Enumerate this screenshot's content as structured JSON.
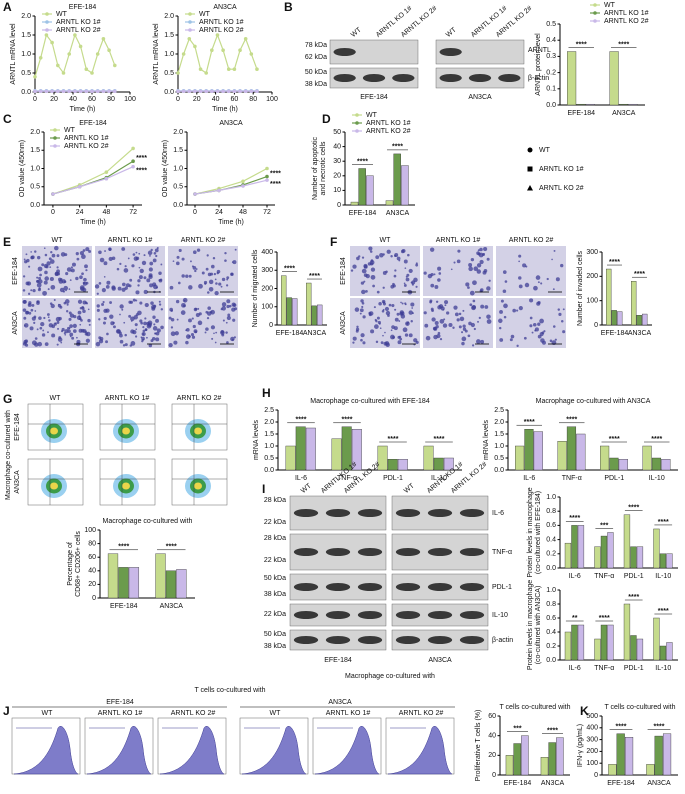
{
  "chart_data": [
    {
      "type": "line",
      "title": "EFE-184",
      "x_label": "Time (h)",
      "y_label": "ARNTL mRNA level",
      "x": [
        0,
        6,
        12,
        18,
        24,
        30,
        36,
        42,
        48,
        54,
        60,
        66,
        72,
        78,
        84
      ],
      "xlim": [
        0,
        100
      ],
      "xticks": [
        0,
        20,
        40,
        60,
        80,
        100
      ],
      "ylim": [
        0,
        2
      ],
      "yticks": [
        {
          "value": 0,
          "label": "0.0"
        },
        0.5,
        {
          "value": 1,
          "label": "1.0"
        },
        1.5,
        {
          "value": 2,
          "label": "2.0"
        }
      ],
      "series": [
        {
          "name": "WT",
          "color": "#c5db8c",
          "values": [
            0.4,
            0.9,
            1.5,
            1.3,
            0.7,
            0.5,
            1.0,
            1.5,
            1.2,
            0.6,
            0.5,
            1.0,
            1.4,
            1.1,
            0.7
          ]
        },
        {
          "name": "ARNTL KO 1#",
          "color": "#9ec3e6",
          "values": [
            0.03,
            0.03,
            0.03,
            0.03,
            0.03,
            0.03,
            0.03,
            0.03,
            0.03,
            0.03,
            0.03,
            0.03,
            0.03,
            0.03,
            0.03
          ]
        },
        {
          "name": "ARNTL KO 2#",
          "color": "#c9b8e8",
          "values": [
            0.02,
            0.02,
            0.02,
            0.02,
            0.02,
            0.02,
            0.02,
            0.02,
            0.02,
            0.02,
            0.02,
            0.02,
            0.02,
            0.02,
            0.02
          ]
        }
      ]
    },
    {
      "type": "line",
      "title": "AN3CA",
      "x_label": "Time (h)",
      "y_label": "ARNTL mRNA level",
      "x": [
        0,
        6,
        12,
        18,
        24,
        30,
        36,
        42,
        48,
        54,
        60,
        66,
        72,
        78,
        84
      ],
      "xlim": [
        0,
        100
      ],
      "xticks": [
        0,
        20,
        40,
        60,
        80,
        100
      ],
      "ylim": [
        0,
        2
      ],
      "yticks": [
        {
          "value": 0,
          "label": "0.0"
        },
        0.5,
        {
          "value": 1,
          "label": "1.0"
        },
        1.5,
        {
          "value": 2,
          "label": "2.0"
        }
      ],
      "series": [
        {
          "name": "WT",
          "color": "#c5db8c",
          "values": [
            0.5,
            1.0,
            1.4,
            1.2,
            0.6,
            0.5,
            1.1,
            1.5,
            1.1,
            0.6,
            0.6,
            1.1,
            1.4,
            1.0,
            0.6
          ]
        },
        {
          "name": "ARNTL KO 1#",
          "color": "#9ec3e6",
          "values": [
            0.03,
            0.03,
            0.03,
            0.03,
            0.03,
            0.03,
            0.03,
            0.03,
            0.03,
            0.03,
            0.03,
            0.03,
            0.03,
            0.03,
            0.03
          ]
        },
        {
          "name": "ARNTL KO 2#",
          "color": "#c9b8e8",
          "values": [
            0.02,
            0.02,
            0.02,
            0.02,
            0.02,
            0.02,
            0.02,
            0.02,
            0.02,
            0.02,
            0.02,
            0.02,
            0.02,
            0.02,
            0.02
          ]
        }
      ]
    },
    {
      "type": "bar",
      "y_label": [
        "ARNTL protein level"
      ],
      "categories": [
        "EFE-184",
        "AN3CA"
      ],
      "ylim": [
        0,
        0.5
      ],
      "yticks": [
        {
          "value": 0,
          "label": "0.0"
        },
        0.1,
        0.2,
        0.3,
        0.4,
        0.5
      ],
      "annotations": [
        "****",
        "****"
      ],
      "series": [
        {
          "name": "WT",
          "color": "#c5db8c",
          "values": [
            0.33,
            0.33
          ]
        },
        {
          "name": "ARNTL KO 1#",
          "color": "#6b9b4c",
          "values": [
            0.005,
            0.005
          ]
        },
        {
          "name": "ARNTL KO 2#",
          "color": "#c9b8e8",
          "values": [
            0.005,
            0.005
          ]
        }
      ]
    },
    {
      "type": "line",
      "title": "EFE-184",
      "x_label": "Time (h)",
      "y_label": [
        "OD value (450nm)"
      ],
      "x": [
        0,
        24,
        48,
        72
      ],
      "xlim": [
        -8,
        80
      ],
      "xticks": [
        0,
        24,
        48,
        72
      ],
      "ylim": [
        0,
        2
      ],
      "yticks": [
        {
          "value": 0,
          "label": "0.0"
        },
        0.5,
        {
          "value": 1,
          "label": "1.0"
        },
        1.5,
        {
          "value": 2,
          "label": "2.0"
        }
      ],
      "annotations": [
        "****",
        "****"
      ],
      "series": [
        {
          "name": "WT",
          "color": "#c5db8c",
          "values": [
            0.3,
            0.55,
            0.9,
            1.55
          ]
        },
        {
          "name": "ARNTL KO 1#",
          "color": "#6b9b4c",
          "values": [
            0.3,
            0.5,
            0.75,
            1.2
          ]
        },
        {
          "name": "ARNTL KO 2#",
          "color": "#c9b8e8",
          "values": [
            0.3,
            0.5,
            0.72,
            1.05
          ]
        }
      ]
    },
    {
      "type": "line",
      "title": "AN3CA",
      "x_label": "Time (h)",
      "y_label": [
        "OD value (450nm)"
      ],
      "x": [
        0,
        24,
        48,
        72
      ],
      "xlim": [
        -8,
        80
      ],
      "xticks": [
        0,
        24,
        48,
        72
      ],
      "ylim": [
        0,
        2
      ],
      "yticks": [
        {
          "value": 0,
          "label": "0.0"
        },
        0.5,
        {
          "value": 1,
          "label": "1.0"
        },
        1.5,
        {
          "value": 2,
          "label": "2.0"
        }
      ],
      "annotations": [
        "****",
        "****"
      ],
      "series": [
        {
          "color": "#c5db8c",
          "values": [
            0.3,
            0.45,
            0.65,
            1.0
          ]
        },
        {
          "color": "#6b9b4c",
          "values": [
            0.3,
            0.4,
            0.55,
            0.78
          ]
        },
        {
          "color": "#c9b8e8",
          "values": [
            0.3,
            0.4,
            0.52,
            0.68
          ]
        }
      ]
    },
    {
      "type": "bar",
      "y_label": [
        "Number of apoptotic",
        "and necrotic cells"
      ],
      "categories": [
        "EFE-184",
        "AN3CA"
      ],
      "ylim": [
        0,
        50
      ],
      "yticks": [
        0,
        10,
        20,
        30,
        40,
        50
      ],
      "annotations": [
        "****",
        "****"
      ],
      "series": [
        {
          "name": "WT",
          "color": "#c5db8c",
          "values": [
            2,
            3
          ]
        },
        {
          "name": "ARNTL KO 1#",
          "color": "#6b9b4c",
          "values": [
            25,
            35
          ]
        },
        {
          "name": "ARNTL KO 2#",
          "color": "#c9b8e8",
          "values": [
            20,
            27
          ]
        }
      ]
    },
    {
      "type": "bar",
      "y_label": [
        "Number of migrated cells"
      ],
      "categories": [
        "EFE-184",
        "AN3CA"
      ],
      "ylim": [
        0,
        400
      ],
      "yticks": [
        0,
        100,
        200,
        300,
        400
      ],
      "annotations": [
        "****",
        "****"
      ],
      "series": [
        {
          "color": "#c5db8c",
          "values": [
            270,
            230
          ]
        },
        {
          "color": "#6b9b4c",
          "values": [
            150,
            105
          ]
        },
        {
          "color": "#c9b8e8",
          "values": [
            145,
            110
          ]
        }
      ]
    },
    {
      "type": "bar",
      "y_label": [
        "Number of invaded cells"
      ],
      "categories": [
        "EFE-184",
        "AN3CA"
      ],
      "ylim": [
        0,
        300
      ],
      "yticks": [
        0,
        100,
        200,
        300
      ],
      "annotations": [
        "****",
        "****"
      ],
      "series": [
        {
          "color": "#c5db8c",
          "values": [
            230,
            180
          ]
        },
        {
          "color": "#6b9b4c",
          "values": [
            60,
            40
          ]
        },
        {
          "color": "#c9b8e8",
          "values": [
            55,
            45
          ]
        }
      ]
    },
    {
      "type": "bar",
      "title": "Macrophage co-cultured with",
      "y_label": [
        "Percentage of",
        "CD68+ CD206+ cells"
      ],
      "categories": [
        "EFE-184",
        "AN3CA"
      ],
      "ylim": [
        0,
        100
      ],
      "yticks": [
        0,
        20,
        40,
        60,
        80,
        100
      ],
      "annotations": [
        "****",
        "****"
      ],
      "series": [
        {
          "color": "#c5db8c",
          "values": [
            65,
            65
          ]
        },
        {
          "color": "#6b9b4c",
          "values": [
            45,
            40
          ]
        },
        {
          "color": "#c9b8e8",
          "values": [
            45,
            42
          ]
        }
      ]
    },
    {
      "type": "bar",
      "title": "Macrophage co-cultured with EFE-184",
      "y_label": [
        "mRNA levels"
      ],
      "categories": [
        "IL-6",
        "TNF-α",
        "PDL-1",
        "IL-10"
      ],
      "ylim": [
        0,
        2.5
      ],
      "yticks": [
        {
          "value": 0,
          "label": "0.0"
        },
        0.5,
        {
          "value": 1,
          "label": "1.0"
        },
        1.5,
        {
          "value": 2,
          "label": "2.0"
        },
        2.5
      ],
      "annotations": [
        "****",
        "****",
        "****",
        "****"
      ],
      "series": [
        {
          "color": "#c5db8c",
          "values": [
            1.0,
            1.3,
            1.0,
            1.0
          ]
        },
        {
          "color": "#6b9b4c",
          "values": [
            1.8,
            1.8,
            0.45,
            0.5
          ]
        },
        {
          "color": "#c9b8e8",
          "values": [
            1.75,
            1.7,
            0.45,
            0.5
          ]
        }
      ]
    },
    {
      "type": "bar",
      "title": "Macrophage co-cultured with AN3CA",
      "y_label": [
        "mRNA levels"
      ],
      "categories": [
        "IL-6",
        "TNF-α",
        "PDL-1",
        "IL-10"
      ],
      "ylim": [
        0,
        2.5
      ],
      "yticks": [
        {
          "value": 0,
          "label": "0.0"
        },
        0.5,
        {
          "value": 1,
          "label": "1.0"
        },
        1.5,
        {
          "value": 2,
          "label": "2.0"
        },
        2.5
      ],
      "annotations": [
        "****",
        "****",
        "****",
        "****"
      ],
      "series": [
        {
          "color": "#c5db8c",
          "values": [
            1.0,
            1.2,
            1.0,
            1.0
          ]
        },
        {
          "color": "#6b9b4c",
          "values": [
            1.7,
            1.8,
            0.5,
            0.5
          ]
        },
        {
          "color": "#c9b8e8",
          "values": [
            1.6,
            1.5,
            0.45,
            0.45
          ]
        }
      ]
    },
    {
      "type": "bar",
      "y_label": [
        "Protein levels in macrophage",
        "(co-cultured with EFE-184)"
      ],
      "categories": [
        "IL-6",
        "TNF-α",
        "PDL-1",
        "IL-10"
      ],
      "ylim": [
        0,
        1
      ],
      "yticks": [
        {
          "value": 0,
          "label": "0.0"
        },
        0.2,
        0.4,
        0.6,
        0.8,
        {
          "value": 1,
          "label": "1.0"
        }
      ],
      "annotations": [
        "****",
        "***",
        "****",
        "****"
      ],
      "series": [
        {
          "color": "#c5db8c",
          "values": [
            0.35,
            0.3,
            0.75,
            0.55
          ]
        },
        {
          "color": "#6b9b4c",
          "values": [
            0.6,
            0.45,
            0.3,
            0.2
          ]
        },
        {
          "color": "#c9b8e8",
          "values": [
            0.6,
            0.5,
            0.3,
            0.2
          ]
        }
      ]
    },
    {
      "type": "bar",
      "y_label": [
        "Protein levels in macrophage",
        "(co-cultured with AN3CA)"
      ],
      "categories": [
        "IL-6",
        "TNF-α",
        "PDL-1",
        "IL-10"
      ],
      "ylim": [
        0,
        1
      ],
      "yticks": [
        {
          "value": 0,
          "label": "0.0"
        },
        0.2,
        0.4,
        0.6,
        0.8,
        {
          "value": 1,
          "label": "1.0"
        }
      ],
      "annotations": [
        "**",
        "****",
        "****",
        "****"
      ],
      "series": [
        {
          "color": "#c5db8c",
          "values": [
            0.4,
            0.3,
            0.8,
            0.6
          ]
        },
        {
          "color": "#6b9b4c",
          "values": [
            0.5,
            0.5,
            0.35,
            0.2
          ]
        },
        {
          "color": "#c9b8e8",
          "values": [
            0.5,
            0.5,
            0.3,
            0.25
          ]
        }
      ]
    },
    {
      "type": "bar",
      "title": "T cells co-cultured with",
      "y_label": [
        "Proliferative T cells (%)"
      ],
      "categories": [
        "EFE-184",
        "AN3CA"
      ],
      "ylim": [
        0,
        60
      ],
      "yticks": [
        0,
        20,
        40,
        60
      ],
      "annotations": [
        "***",
        "****"
      ],
      "series": [
        {
          "color": "#c5db8c",
          "values": [
            20,
            18
          ]
        },
        {
          "color": "#6b9b4c",
          "values": [
            32,
            33
          ]
        },
        {
          "color": "#c9b8e8",
          "values": [
            40,
            38
          ]
        }
      ]
    },
    {
      "type": "bar",
      "title": "T cells co-cultured with",
      "y_label": [
        "IFN-γ (pg/mL)"
      ],
      "categories": [
        "EFE-184",
        "AN3CA"
      ],
      "ylim": [
        0,
        500
      ],
      "yticks": [
        0,
        100,
        200,
        300,
        400,
        500
      ],
      "annotations": [
        "****",
        "****"
      ],
      "series": [
        {
          "color": "#c5db8c",
          "values": [
            90,
            90
          ]
        },
        {
          "color": "#6b9b4c",
          "values": [
            350,
            330
          ]
        },
        {
          "color": "#c9b8e8",
          "values": [
            320,
            350
          ]
        }
      ]
    }
  ],
  "figure": {
    "panel_labels": [
      "A",
      "B",
      "C",
      "D",
      "E",
      "F",
      "G",
      "H",
      "I",
      "J",
      "K"
    ],
    "legend": [
      "WT",
      "ARNTL KO 1#",
      "ARNTL KO 2#"
    ],
    "blot_b": {
      "lanes": [
        "WT",
        "ARNTL KO 1#",
        "ARNTL KO 2#",
        "WT",
        "ARNTL KO 1#",
        "ARNTL KO 2#"
      ],
      "markers": [
        "78 kDa",
        "62 kDa",
        "50 kDa",
        "38 kDa"
      ],
      "proteins": [
        "ARNTL",
        "β-actin"
      ],
      "cells": [
        "EFE-184",
        "AN3CA"
      ]
    },
    "images_e": {
      "columns": [
        "WT",
        "ARNTL KO 1#",
        "ARNTL KO 2#"
      ],
      "rows": [
        "EFE-184",
        "AN3CA"
      ]
    },
    "images_f": {
      "columns": [
        "WT",
        "ARNTL KO 1#",
        "ARNTL KO 2#"
      ],
      "rows": [
        "EFE-184",
        "AN3CA"
      ]
    },
    "flow_g": {
      "side_title": "Macrophage co-cultured with",
      "columns": [
        "WT",
        "ARNTL KO 1#",
        "ARNTL KO 2#"
      ],
      "rows": [
        "EFE-184",
        "AN3CA"
      ]
    },
    "blot_i": {
      "lanes": [
        "WT",
        "ARNTL KO 1#",
        "ARNTL KO 2#",
        "WT",
        "ARNTL KO 1#",
        "ARNTL KO 2#"
      ],
      "markers": [
        "28 kDa",
        "22 kDa",
        "28 kDa",
        "22 kDa",
        "50 kDa",
        "38 kDa",
        "22 kDa",
        "50 kDa",
        "38 kDa"
      ],
      "proteins": [
        "IL-6",
        "TNF-α",
        "PDL-1",
        "IL-10",
        "β-actin"
      ],
      "cells": [
        "EFE-184",
        "AN3CA"
      ],
      "caption": "Macrophage co-cultured with"
    },
    "flow_j": {
      "title": "T cells co-cultured with",
      "cells": [
        "EFE-184",
        "AN3CA"
      ],
      "columns": [
        "WT",
        "ARNTL KO 1#",
        "ARNTL KO 2#"
      ]
    }
  }
}
